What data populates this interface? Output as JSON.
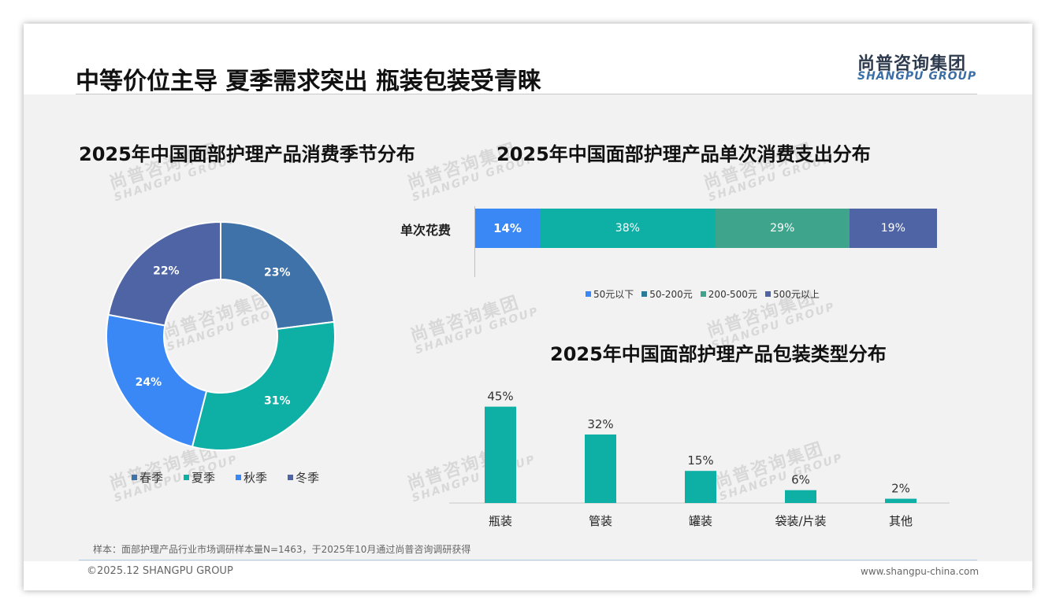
{
  "page": {
    "title": "中等价位主导 夏季需求突出 瓶装包装受青睐",
    "logo_cn": "尚普咨询集团",
    "logo_en": "SHANGPU GROUP",
    "note": "样本：面部护理产品行业市场调研样本量N=1463，于2025年10月通过尚普咨询调研获得",
    "copyright": "©2025.12 SHANGPU GROUP",
    "website": "www.shangpu-china.com",
    "watermark_cn": "尚普咨询集团",
    "watermark_en": "SHANGPU GROUP"
  },
  "chart_data": [
    {
      "type": "pie",
      "title": "2025年中国面部护理产品消费季节分布",
      "donut": true,
      "categories": [
        "春季",
        "夏季",
        "秋季",
        "冬季"
      ],
      "values": [
        23,
        31,
        24,
        22
      ],
      "labels": [
        "23%",
        "31%",
        "24%",
        "22%"
      ],
      "colors": [
        "#3f72a8",
        "#0eafa4",
        "#3a88f5",
        "#4f64a4"
      ],
      "legend": "bottom"
    },
    {
      "type": "bar",
      "orientation": "horizontal",
      "stacked": true,
      "title": "2025年中国面部护理产品单次消费支出分布",
      "categories": [
        "单次花费"
      ],
      "series": [
        {
          "name": "50元以下",
          "values": [
            14
          ],
          "label": "14%",
          "color": "#3a88f5"
        },
        {
          "name": "50-200元",
          "values": [
            38
          ],
          "label": "38%",
          "color": "#0eafa4"
        },
        {
          "name": "200-500元",
          "values": [
            29
          ],
          "label": "29%",
          "color": "#3fa48c"
        },
        {
          "name": "500元以上",
          "values": [
            19
          ],
          "label": "19%",
          "color": "#4f64a4"
        }
      ],
      "legend_colors": [
        "#3a88f5",
        "#2a7b96",
        "#3fa48c",
        "#4f64a4"
      ],
      "legend": "bottom"
    },
    {
      "type": "bar",
      "title": "2025年中国面部护理产品包装类型分布",
      "categories": [
        "瓶装",
        "管装",
        "罐装",
        "袋装/片装",
        "其他"
      ],
      "values": [
        45,
        32,
        15,
        6,
        2
      ],
      "labels": [
        "45%",
        "32%",
        "15%",
        "6%",
        "2%"
      ],
      "color": "#0eafa4",
      "ylim": [
        0,
        50
      ]
    }
  ]
}
